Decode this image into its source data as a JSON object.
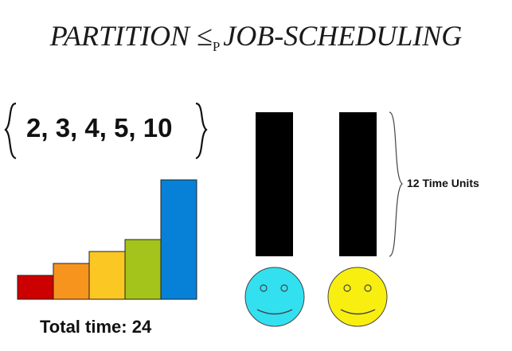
{
  "title": {
    "left": "PARTITION ",
    "operator": "≤",
    "subscript": "P",
    "right": "JOB-SCHEDULING"
  },
  "set_text": "2, 3, 4, 5, 10",
  "jobs": {
    "values": [
      2,
      3,
      4,
      5,
      10
    ],
    "colors": [
      "#cc0000",
      "#f7941d",
      "#fbc823",
      "#a4c31b",
      "#0781d7"
    ]
  },
  "total_label": "Total time: 24",
  "machines": {
    "count": 2,
    "time_label": "12 Time Units",
    "face_colors": [
      "#33e0f0",
      "#f8ef10"
    ]
  }
}
